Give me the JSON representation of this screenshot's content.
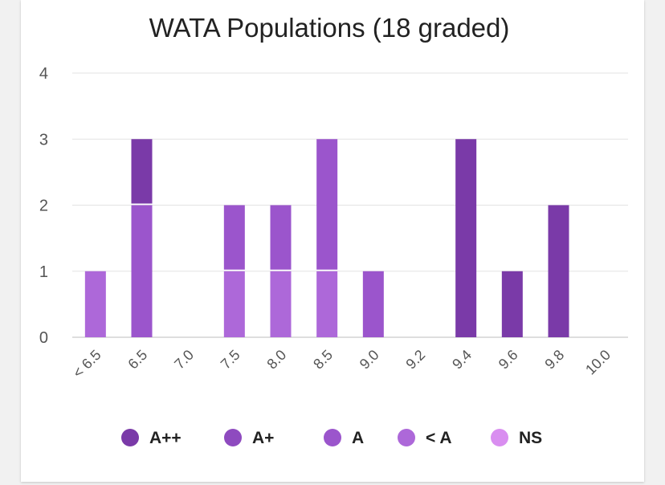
{
  "chart_data": {
    "type": "bar",
    "stacked": true,
    "title": "WATA Populations (18 graded)",
    "xlabel": "",
    "ylabel": "",
    "ylim": [
      0,
      4
    ],
    "yticks": [
      0,
      1,
      2,
      3,
      4
    ],
    "grid": true,
    "legend_position": "bottom",
    "categories": [
      "< 6.5",
      "6.5",
      "7.0",
      "7.5",
      "8.0",
      "8.5",
      "9.0",
      "9.2",
      "9.4",
      "9.6",
      "9.8",
      "10.0"
    ],
    "series": [
      {
        "name": "A++",
        "color": "#7a3aa8",
        "values": [
          0,
          1,
          0,
          0,
          0,
          0,
          0,
          0,
          3,
          1,
          2,
          0
        ]
      },
      {
        "name": "A+",
        "color": "#8e4abf",
        "values": [
          0,
          0,
          0,
          0,
          0,
          0,
          0,
          0,
          0,
          0,
          0,
          0
        ]
      },
      {
        "name": "A",
        "color": "#9b55cc",
        "values": [
          0,
          2,
          0,
          1,
          1,
          2,
          1,
          0,
          0,
          0,
          0,
          0
        ]
      },
      {
        "name": "< A",
        "color": "#ad68d9",
        "values": [
          1,
          0,
          0,
          1,
          1,
          1,
          0,
          0,
          0,
          0,
          0,
          0
        ]
      },
      {
        "name": "NS",
        "color": "#d98ef0",
        "values": [
          0,
          0,
          0,
          0,
          0,
          0,
          0,
          0,
          0,
          0,
          0,
          0
        ]
      }
    ]
  }
}
